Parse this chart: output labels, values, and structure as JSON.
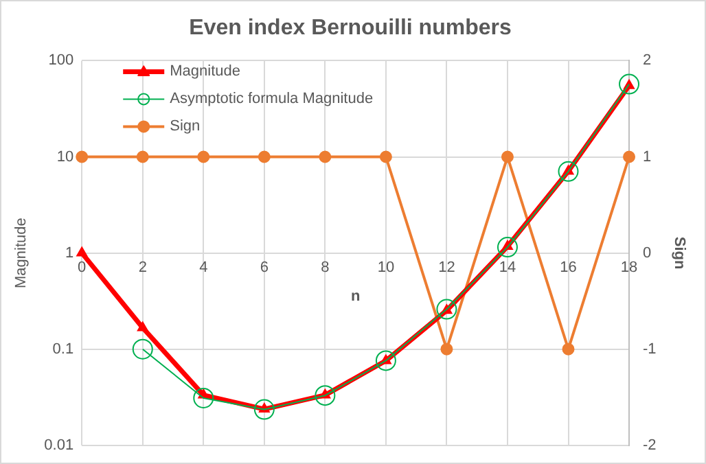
{
  "chart_data": {
    "type": "line",
    "title": "Even index Bernouilli numbers",
    "xlabel": "n",
    "ylabel": "Magnitude",
    "y2label": "Sign",
    "categories": [
      "0",
      "2",
      "4",
      "6",
      "8",
      "10",
      "12",
      "14",
      "16",
      "18"
    ],
    "series": [
      {
        "name": "Magnitude",
        "color": "#ff0000",
        "marker": "triangle",
        "values": [
          1,
          0.167,
          0.0333,
          0.0238,
          0.0333,
          0.0758,
          0.253,
          1.17,
          7.09,
          55
        ]
      },
      {
        "name": "Asymptotic formula Magnitude",
        "color": "#00b050",
        "marker": "circle",
        "values": [
          null,
          0.1,
          0.031,
          0.0236,
          0.033,
          0.076,
          0.26,
          1.15,
          7.05,
          57
        ]
      },
      {
        "name": "Sign",
        "color": "#ed7d31",
        "marker": "circle",
        "axis": "y2",
        "values": [
          1,
          1,
          1,
          1,
          1,
          1,
          -1,
          1,
          -1,
          1
        ]
      }
    ],
    "log": "y",
    "ylim": [
      0.01,
      100
    ],
    "yticks": [
      0.01,
      0.1,
      1,
      10,
      100
    ],
    "y2lim": [
      -2,
      2
    ],
    "y2ticks": [
      -2,
      -1,
      0,
      1,
      2
    ],
    "grid": true,
    "legend": "top left"
  }
}
